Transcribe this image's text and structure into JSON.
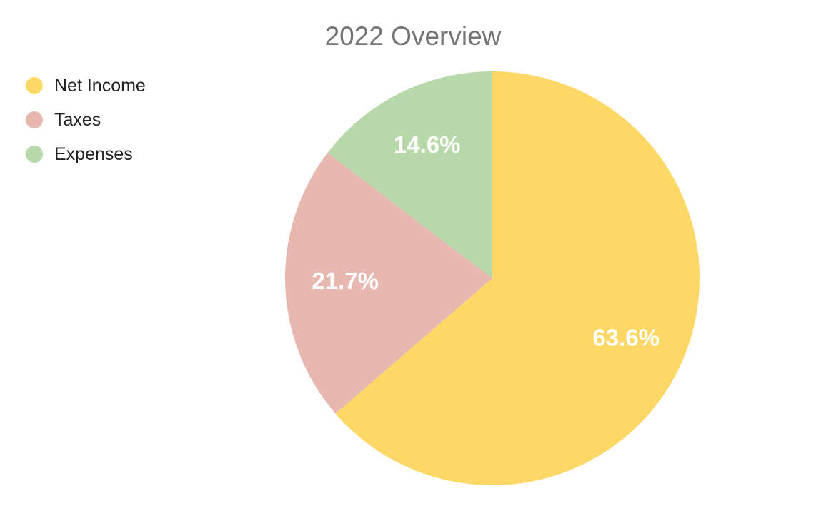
{
  "chart_data": {
    "type": "pie",
    "title": "2022 Overview",
    "legend_position": "top-left",
    "slices": [
      {
        "label": "Net Income",
        "value": 63.6,
        "display": "63.6%",
        "color": "#fdd866"
      },
      {
        "label": "Taxes",
        "value": 21.7,
        "display": "21.7%",
        "color": "#e6b8b0"
      },
      {
        "label": "Expenses",
        "value": 14.6,
        "display": "14.6%",
        "color": "#b7d8a9"
      }
    ]
  }
}
